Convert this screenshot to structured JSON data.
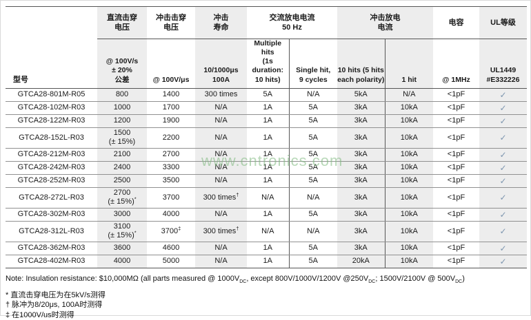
{
  "page": {
    "watermark": "www.cntronics.com"
  },
  "colors": {
    "column_shade": "#ededed",
    "check_mark": "#7d95af",
    "watermark_green": "#7fba7f",
    "line_dark": "#555555",
    "line_light": "#909090"
  },
  "table": {
    "model_header": "型号",
    "groups": {
      "dc_breakdown": "直流击穿\n电压",
      "impulse_breakdown": "冲击击穿\n电压",
      "impulse_life": "冲击\n寿命",
      "ac_discharge": "交流放电电流\n50 Hz",
      "impulse_discharge": "冲击放电\n电流",
      "capacitance": "电容",
      "ul_rating": "UL等级"
    },
    "subheaders": {
      "dc_breakdown": "@ 100V/s\n± 20%\n公差",
      "impulse_breakdown": "@ 100V/μs",
      "impulse_life": "10/1000μs\n100A",
      "ac_multiple": "Multiple hits\n(1s duration:\n10 hits)",
      "ac_single": "Single hit,\n9 cycles",
      "imp_10hits": "10 hits (5 hits\neach polarity)",
      "imp_1hit": "1 hit",
      "capacitance": "@ 1MHz",
      "ul_rating": "UL1449\n#E332226"
    },
    "rows": [
      [
        "GTCA28-801M-R05",
        "800",
        "1400",
        "300 times",
        "5A",
        "N/A",
        "5kA",
        "N/A",
        "<1pF",
        "✓"
      ],
      [
        "GTCA28-102M-R03",
        "1000",
        "1700",
        "N/A",
        "1A",
        "5A",
        "3kA",
        "10kA",
        "<1pF",
        "✓"
      ],
      [
        "GTCA28-122M-R03",
        "1200",
        "1900",
        "N/A",
        "1A",
        "5A",
        "3kA",
        "10kA",
        "<1pF",
        "✓"
      ],
      [
        "GTCA28-152L-R03",
        "1500\n(± 15%)",
        "2200",
        "N/A",
        "1A",
        "5A",
        "3kA",
        "10kA",
        "<1pF",
        "✓"
      ],
      [
        "GTCA28-212M-R03",
        "2100",
        "2700",
        "N/A",
        "1A",
        "5A",
        "3kA",
        "10kA",
        "<1pF",
        "✓"
      ],
      [
        "GTCA28-242M-R03",
        "2400",
        "3300",
        "N/A",
        "1A",
        "5A",
        "3kA",
        "10kA",
        "<1pF",
        "✓"
      ],
      [
        "GTCA28-252M-R03",
        "2500",
        "3500",
        "N/A",
        "1A",
        "5A",
        "3kA",
        "10kA",
        "<1pF",
        "✓"
      ],
      [
        "GTCA28-272L-R03",
        "2700\n(± 15%)*",
        "3700",
        "300 times†",
        "N/A",
        "N/A",
        "3kA",
        "10kA",
        "<1pF",
        "✓"
      ],
      [
        "GTCA28-302M-R03",
        "3000",
        "4000",
        "N/A",
        "1A",
        "5A",
        "3kA",
        "10kA",
        "<1pF",
        "✓"
      ],
      [
        "GTCA28-312L-R03",
        "3100\n(± 15%)*",
        "3700‡",
        "300 times†",
        "N/A",
        "N/A",
        "3kA",
        "10kA",
        "<1pF",
        "✓"
      ],
      [
        "GTCA28-362M-R03",
        "3600",
        "4600",
        "N/A",
        "1A",
        "5A",
        "3kA",
        "10kA",
        "<1pF",
        "✓"
      ],
      [
        "GTCA28-402M-R03",
        "4000",
        "5000",
        "N/A",
        "1A",
        "5A",
        "20kA",
        "10kA",
        "<1pF",
        "✓"
      ]
    ]
  },
  "note": {
    "parts": [
      "Note: Insulation resistance: $10,000MΩ (all parts measured @ 1000V",
      "DC",
      ", except 800V/1000V/1200V @250V",
      "DC",
      "; 1500V/2100V @ 500V",
      "DC",
      ")"
    ]
  },
  "footnotes": [
    "* 直流击穿电压为在5kV/s测得",
    "† 脉冲为8/20μs, 100A时测得",
    "‡ 在1000V/us时测得"
  ]
}
